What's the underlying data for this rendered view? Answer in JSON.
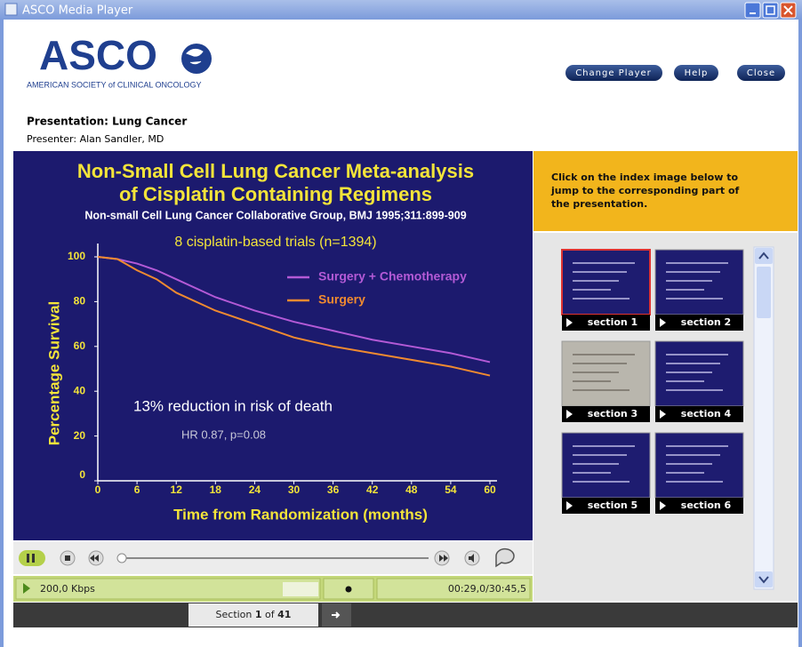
{
  "window": {
    "title": "ASCO Media Player"
  },
  "header": {
    "logo": "ASCO",
    "tagline": "AMERICAN SOCIETY of CLINICAL ONCOLOGY",
    "buttons": [
      "Change Player",
      "Help",
      "Close"
    ]
  },
  "presentation": {
    "title": "Presentation: Lung Cancer",
    "presenter": "Presenter: Alan Sandler, MD"
  },
  "slide": {
    "title_lines": [
      "Non-Small Cell Lung Cancer Meta-analysis",
      "of Cisplatin Containing Regimens"
    ],
    "subtitle": "Non-small Cell Lung Cancer Collaborative Group, BMJ 1995;311:899-909",
    "chart": {
      "type": "line",
      "heading": "8 cisplatin-based trials (n=1394)",
      "ylabel": "Percentage Survival",
      "xlabel": "Time from Randomization (months)",
      "x": [
        0,
        3,
        6,
        9,
        12,
        18,
        24,
        30,
        36,
        42,
        48,
        54,
        60
      ],
      "series": [
        {
          "name": "Surgery + Chemotherapy",
          "color": "#b35ad6",
          "values": [
            100,
            99,
            97,
            94,
            90,
            82,
            76,
            71,
            67,
            63,
            60,
            57,
            53
          ]
        },
        {
          "name": "Surgery",
          "color": "#f08a30",
          "values": [
            100,
            99,
            94,
            90,
            84,
            76,
            70,
            64,
            60,
            57,
            54,
            51,
            47
          ]
        }
      ],
      "xlim": [
        0,
        60
      ],
      "xticks": [
        0,
        6,
        12,
        18,
        24,
        30,
        36,
        42,
        48,
        54,
        60
      ],
      "ylim": [
        0,
        100
      ],
      "yticks": [
        0,
        20,
        40,
        60,
        80,
        100
      ],
      "annotations": [
        "13% reduction in risk of death",
        "HR 0.87, p=0.08"
      ]
    }
  },
  "index": {
    "instruction_lines": [
      "Click on the index image below to",
      "jump to the corresponding part of",
      "the presentation."
    ],
    "sections": [
      "section 1",
      "section 2",
      "section 3",
      "section 4",
      "section 5",
      "section 6"
    ]
  },
  "player": {
    "bitrate": "200,0 Kbps",
    "time": "00:29,0/30:45,5"
  },
  "navigation": {
    "label": "Section",
    "current": 1,
    "of": "of",
    "total": 41
  }
}
